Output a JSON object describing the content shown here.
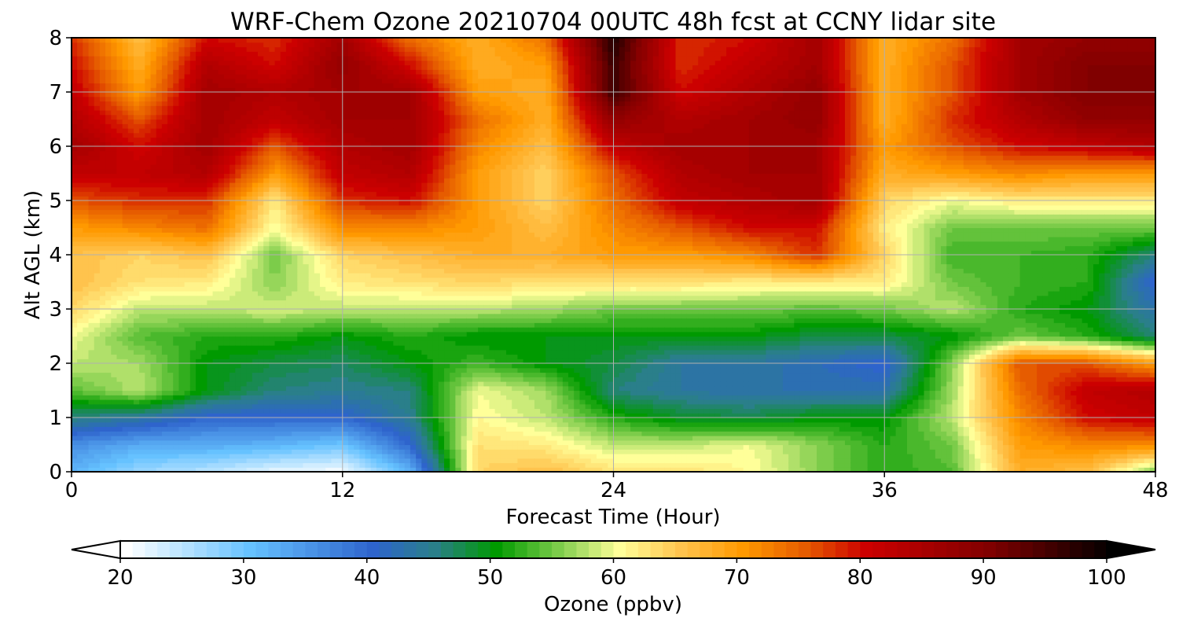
{
  "chart_data": {
    "type": "heatmap",
    "title": "WRF-Chem Ozone  20210704 00UTC 48h fcst at CCNY lidar site",
    "xlabel": "Forecast Time (Hour)",
    "ylabel": "Alt AGL (km)",
    "xlim": [
      0,
      48
    ],
    "ylim": [
      0,
      8
    ],
    "x_ticks": [
      0,
      12,
      24,
      36,
      48
    ],
    "y_ticks": [
      0,
      1,
      2,
      3,
      4,
      5,
      6,
      7,
      8
    ],
    "grid": true,
    "x": [
      0,
      3,
      6,
      9,
      12,
      15,
      18,
      21,
      24,
      27,
      30,
      33,
      36,
      39,
      42,
      45,
      48
    ],
    "y": [
      0,
      0.5,
      1,
      1.5,
      2,
      2.5,
      3,
      3.5,
      4,
      4.5,
      5,
      5.5,
      6,
      6.5,
      7,
      7.5,
      8
    ],
    "z": [
      [
        32,
        27,
        25,
        22,
        21,
        32,
        64,
        66,
        63,
        63,
        61,
        56,
        52,
        54,
        68,
        66,
        55
      ],
      [
        36,
        33,
        33,
        32,
        30,
        40,
        63,
        62,
        58,
        58,
        60,
        56,
        52,
        55,
        70,
        72,
        72
      ],
      [
        46,
        44,
        40,
        40,
        40,
        45,
        61,
        58,
        52,
        49,
        48,
        50,
        50,
        58,
        72,
        80,
        82
      ],
      [
        54,
        58,
        50,
        46,
        45,
        46,
        60,
        57,
        46,
        44,
        43,
        43,
        43,
        57,
        74,
        82,
        84
      ],
      [
        58,
        57,
        50,
        48,
        47,
        50,
        53,
        50,
        48,
        44,
        44,
        42,
        40,
        56,
        76,
        76,
        70
      ],
      [
        60,
        54,
        52,
        52,
        50,
        52,
        50,
        50,
        50,
        50,
        50,
        48,
        48,
        50,
        55,
        52,
        46
      ],
      [
        64,
        58,
        58,
        59,
        58,
        58,
        58,
        57,
        55,
        55,
        55,
        54,
        55,
        58,
        52,
        50,
        43
      ],
      [
        66,
        63,
        62,
        56,
        62,
        63,
        64,
        63,
        63,
        63,
        62,
        62,
        62,
        55,
        53,
        52,
        40
      ],
      [
        66,
        64,
        66,
        55,
        64,
        66,
        68,
        68,
        70,
        70,
        72,
        78,
        64,
        53,
        53,
        52,
        46
      ],
      [
        70,
        72,
        74,
        60,
        72,
        72,
        70,
        66,
        72,
        76,
        80,
        80,
        62,
        55,
        55,
        55,
        55
      ],
      [
        76,
        78,
        78,
        62,
        78,
        80,
        70,
        64,
        74,
        82,
        84,
        86,
        64,
        60,
        62,
        62,
        62
      ],
      [
        82,
        82,
        84,
        70,
        82,
        84,
        70,
        64,
        76,
        84,
        86,
        86,
        68,
        70,
        72,
        70,
        70
      ],
      [
        86,
        80,
        86,
        76,
        84,
        86,
        72,
        66,
        82,
        86,
        86,
        86,
        70,
        76,
        80,
        82,
        84
      ],
      [
        84,
        76,
        86,
        82,
        86,
        86,
        74,
        68,
        88,
        84,
        86,
        88,
        68,
        78,
        84,
        88,
        88
      ],
      [
        82,
        70,
        86,
        84,
        86,
        86,
        70,
        68,
        96,
        80,
        84,
        88,
        68,
        76,
        86,
        90,
        90
      ],
      [
        80,
        68,
        84,
        80,
        88,
        80,
        68,
        70,
        96,
        78,
        82,
        86,
        68,
        76,
        86,
        90,
        90
      ],
      [
        78,
        66,
        80,
        78,
        86,
        74,
        68,
        74,
        98,
        78,
        80,
        86,
        68,
        74,
        86,
        88,
        88
      ]
    ]
  },
  "colorbar": {
    "label": "Ozone  (ppbv)",
    "min": 20,
    "max": 100,
    "tick_values": [
      20,
      30,
      40,
      50,
      60,
      70,
      80,
      90,
      100
    ],
    "extend": "both",
    "colors": [
      {
        "v": 20,
        "c": "#ffffff"
      },
      {
        "v": 30,
        "c": "#66c2ff"
      },
      {
        "v": 40,
        "c": "#2e64cc"
      },
      {
        "v": 45,
        "c": "#2a7f8a"
      },
      {
        "v": 50,
        "c": "#009a00"
      },
      {
        "v": 55,
        "c": "#7ccc4a"
      },
      {
        "v": 60,
        "c": "#ffff99"
      },
      {
        "v": 65,
        "c": "#ffc34d"
      },
      {
        "v": 70,
        "c": "#ff9900"
      },
      {
        "v": 75,
        "c": "#e65c00"
      },
      {
        "v": 80,
        "c": "#cc0000"
      },
      {
        "v": 90,
        "c": "#800000"
      },
      {
        "v": 100,
        "c": "#000000"
      }
    ]
  }
}
